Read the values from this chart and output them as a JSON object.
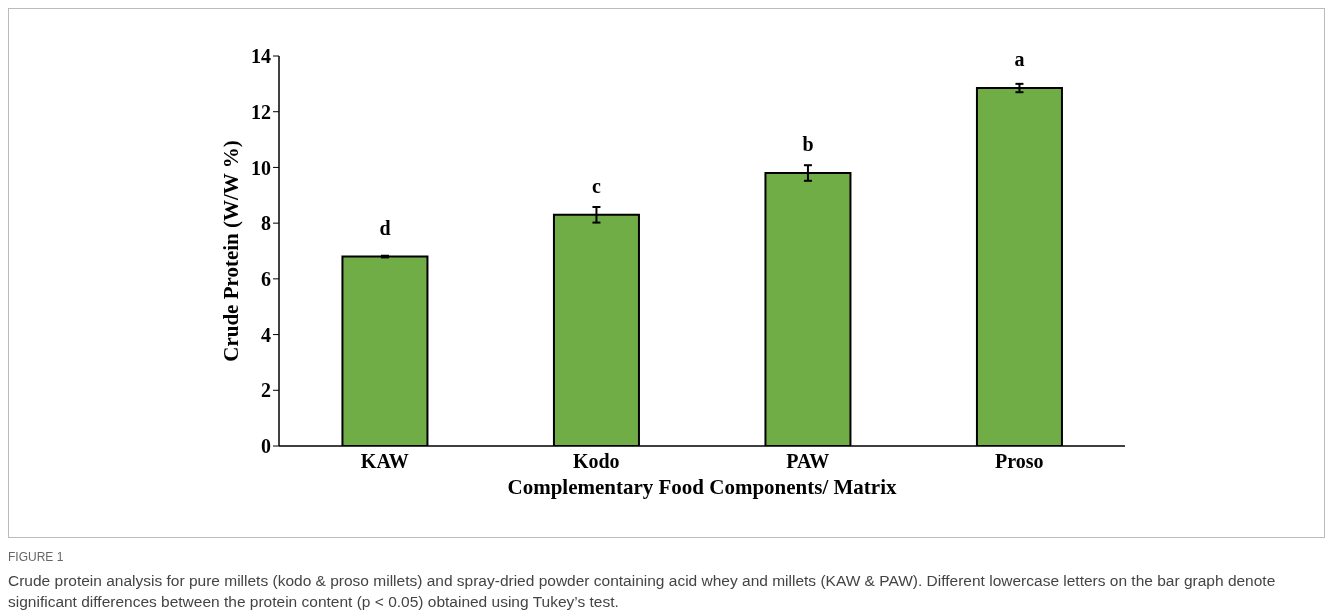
{
  "chart_data": {
    "type": "bar",
    "xlabel": "Complementary Food Components/ Matrix",
    "ylabel": "Crude Protein  (W/W %)",
    "categories": [
      "KAW",
      "Kodo",
      "PAW",
      "Proso"
    ],
    "values": [
      6.8,
      8.3,
      9.8,
      12.85
    ],
    "errors": [
      0.03,
      0.28,
      0.28,
      0.15
    ],
    "value_labels": [
      "d",
      "c",
      "b",
      "a"
    ],
    "color": "#70ad47",
    "ylim": [
      0,
      14
    ],
    "yticks": [
      0,
      2,
      4,
      6,
      8,
      10,
      12,
      14
    ],
    "grid": false,
    "legend": false,
    "annotations": [
      "FIGURE 1",
      "Crude protein analysis for pure millets (kodo & proso millets) and spray-dried powder containing acid whey and millets (KAW & PAW). Different lowercase letters on the bar graph denote significant differences between the protein content (p < 0.05) obtained using Tukey’s test."
    ]
  }
}
